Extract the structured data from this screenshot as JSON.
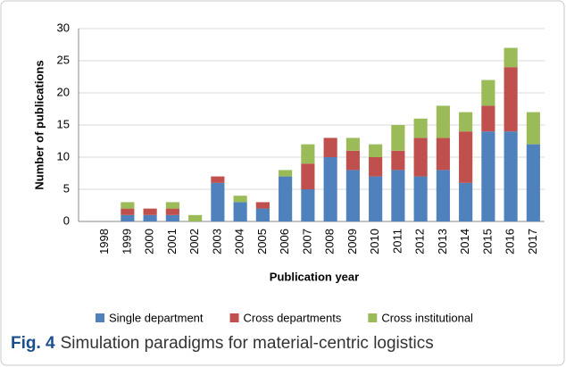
{
  "chart_data": {
    "type": "stacked_bar",
    "y_label": "Number of publications",
    "x_label": "Publication year",
    "caption_label": "Fig. 4",
    "caption": "Simulation paradigms for material-centric logistics",
    "categories": [
      "1998",
      "1999",
      "2000",
      "2001",
      "2002",
      "2003",
      "2004",
      "2005",
      "2006",
      "2007",
      "2008",
      "2009",
      "2010",
      "2011",
      "2012",
      "2013",
      "2014",
      "2015",
      "2016",
      "2017"
    ],
    "series": [
      {
        "name": "Single department",
        "color": "#4f81bd",
        "values": [
          0,
          1,
          1,
          1,
          0,
          6,
          3,
          2,
          7,
          5,
          10,
          8,
          7,
          8,
          7,
          8,
          6,
          14,
          14,
          12
        ]
      },
      {
        "name": "Cross departments",
        "color": "#c0504d",
        "values": [
          0,
          1,
          1,
          1,
          0,
          1,
          0,
          1,
          0,
          4,
          3,
          3,
          3,
          3,
          6,
          5,
          8,
          4,
          10,
          0
        ]
      },
      {
        "name": "Cross institutional",
        "color": "#9bbb59",
        "values": [
          0,
          1,
          0,
          1,
          1,
          0,
          1,
          0,
          1,
          3,
          0,
          2,
          2,
          4,
          3,
          5,
          3,
          4,
          3,
          5
        ]
      }
    ],
    "ylim": [
      0,
      30
    ],
    "yticks": [
      0,
      5,
      10,
      15,
      20,
      25,
      30
    ],
    "grid": true,
    "legend": "bottom"
  }
}
